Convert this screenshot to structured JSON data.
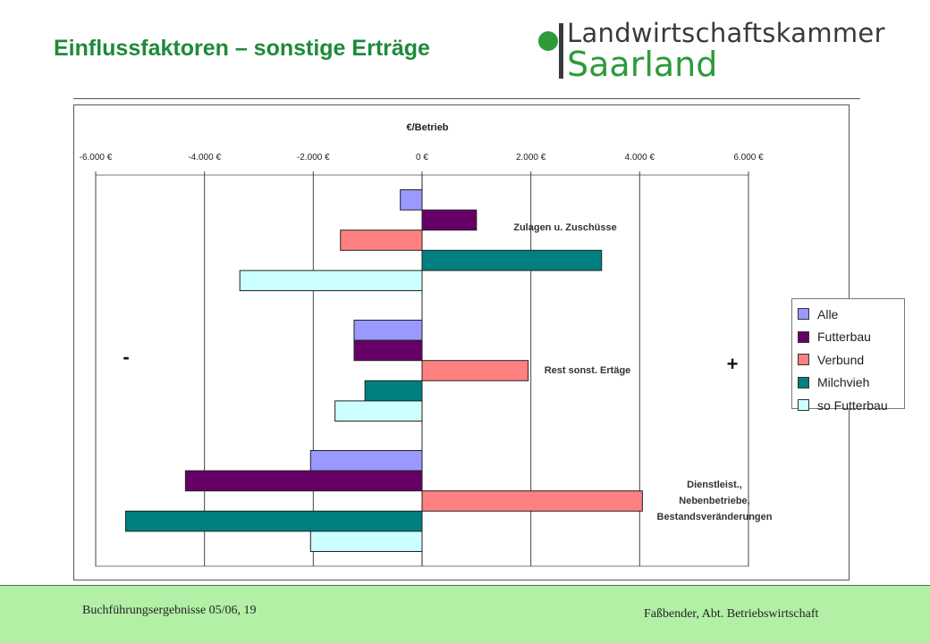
{
  "slide": {
    "title": "Einflussfaktoren – sonstige Erträge",
    "logo_line1": "Landwirtschaftskammer",
    "logo_line2": "Saarland"
  },
  "footer": {
    "left": "Buchführungsergebnisse 05/06, 19",
    "right": "Faßbender, Abt. Betriebswirtschaft"
  },
  "chart_data": {
    "type": "bar",
    "orientation": "horizontal",
    "xlabel": "€/Betrieb",
    "xlim": [
      -6000,
      6000
    ],
    "xticks": [
      -6000,
      -4000,
      -2000,
      0,
      2000,
      4000,
      6000
    ],
    "xtick_labels": [
      "-6.000 €",
      "-4.000 €",
      "-2.000 €",
      "0 €",
      "2.000 €",
      "4.000 €",
      "6.000 €"
    ],
    "grid": "vertical major gridlines",
    "legend_position": "right",
    "categories": [
      "Zulagen u. Zuschüsse",
      "Rest sonst. Ertäge",
      "Dienstleist., Nebenbetriebe, Bestandsveränderungen"
    ],
    "category_label_lines": [
      [
        "Zulagen u. Zuschüsse"
      ],
      [
        "Rest sonst. Ertäge"
      ],
      [
        "Dienstleist.,",
        "Nebenbetriebe,",
        "Bestandsveränderungen"
      ]
    ],
    "series": [
      {
        "name": "Alle",
        "color": "#9999ff",
        "values": [
          -400,
          -1250,
          -2050
        ]
      },
      {
        "name": "Futterbau",
        "color": "#660066",
        "values": [
          1000,
          -1250,
          -4350
        ]
      },
      {
        "name": "Verbund",
        "color": "#ff8080",
        "values": [
          -1500,
          1950,
          4050
        ]
      },
      {
        "name": "Milchvieh",
        "color": "#008080",
        "values": [
          3300,
          -1050,
          -5450
        ]
      },
      {
        "name": "so Futterbau",
        "color": "#ccffff",
        "values": [
          -3350,
          -1600,
          -2050
        ]
      }
    ],
    "annotations": {
      "minus": "-",
      "plus": "+"
    }
  }
}
